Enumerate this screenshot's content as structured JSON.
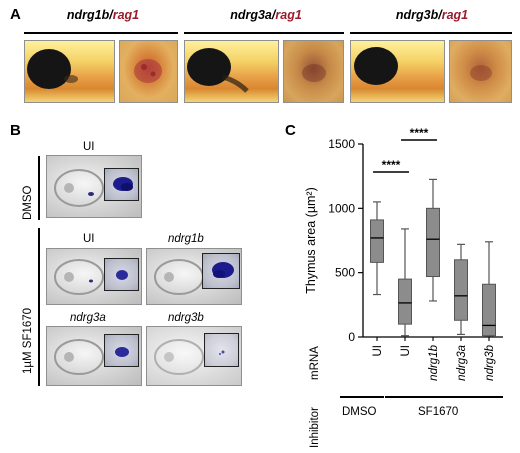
{
  "panel_a": {
    "letter": "A",
    "titles": [
      {
        "gene": "ndrg1b",
        "sep": "/",
        "partner": "rag1"
      },
      {
        "gene": "ndrg3a",
        "sep": "/",
        "partner": "rag1"
      },
      {
        "gene": "ndrg3b",
        "sep": "/",
        "partner": "rag1"
      }
    ]
  },
  "panel_b": {
    "letter": "B",
    "dmso_label": "DMSO",
    "sf_label": "1µM SF1670",
    "images": [
      "UI",
      "UI",
      "ndrg1b",
      "ndrg3a",
      "ndrg3b"
    ]
  },
  "panel_c": {
    "letter": "C",
    "row_label_mrna": "mRNA",
    "row_label_inhibitor": "Inhibitor",
    "inhibitor_dmso": "DMSO",
    "inhibitor_sf": "SF1670",
    "significance": [
      "****",
      "****"
    ]
  },
  "chart_data": {
    "type": "box",
    "ylabel": "Thymus area (µm²)",
    "ylim": [
      0,
      1500
    ],
    "yticks": [
      0,
      500,
      1000,
      1500
    ],
    "categories": [
      "UI",
      "UI",
      "ndrg1b",
      "ndrg3a",
      "ndrg3b"
    ],
    "category_italic": [
      false,
      false,
      true,
      true,
      true
    ],
    "boxes": [
      {
        "min": 330,
        "q1": 580,
        "median": 770,
        "q3": 910,
        "max": 1050
      },
      {
        "min": 10,
        "q1": 100,
        "median": 265,
        "q3": 450,
        "max": 840
      },
      {
        "min": 280,
        "q1": 470,
        "median": 760,
        "q3": 1000,
        "max": 1225
      },
      {
        "min": 20,
        "q1": 130,
        "median": 320,
        "q3": 600,
        "max": 720
      },
      {
        "min": 10,
        "q1": 10,
        "median": 90,
        "q3": 410,
        "max": 740
      }
    ],
    "colors": {
      "box": "#8c8c8c",
      "stroke": "#555555"
    }
  }
}
